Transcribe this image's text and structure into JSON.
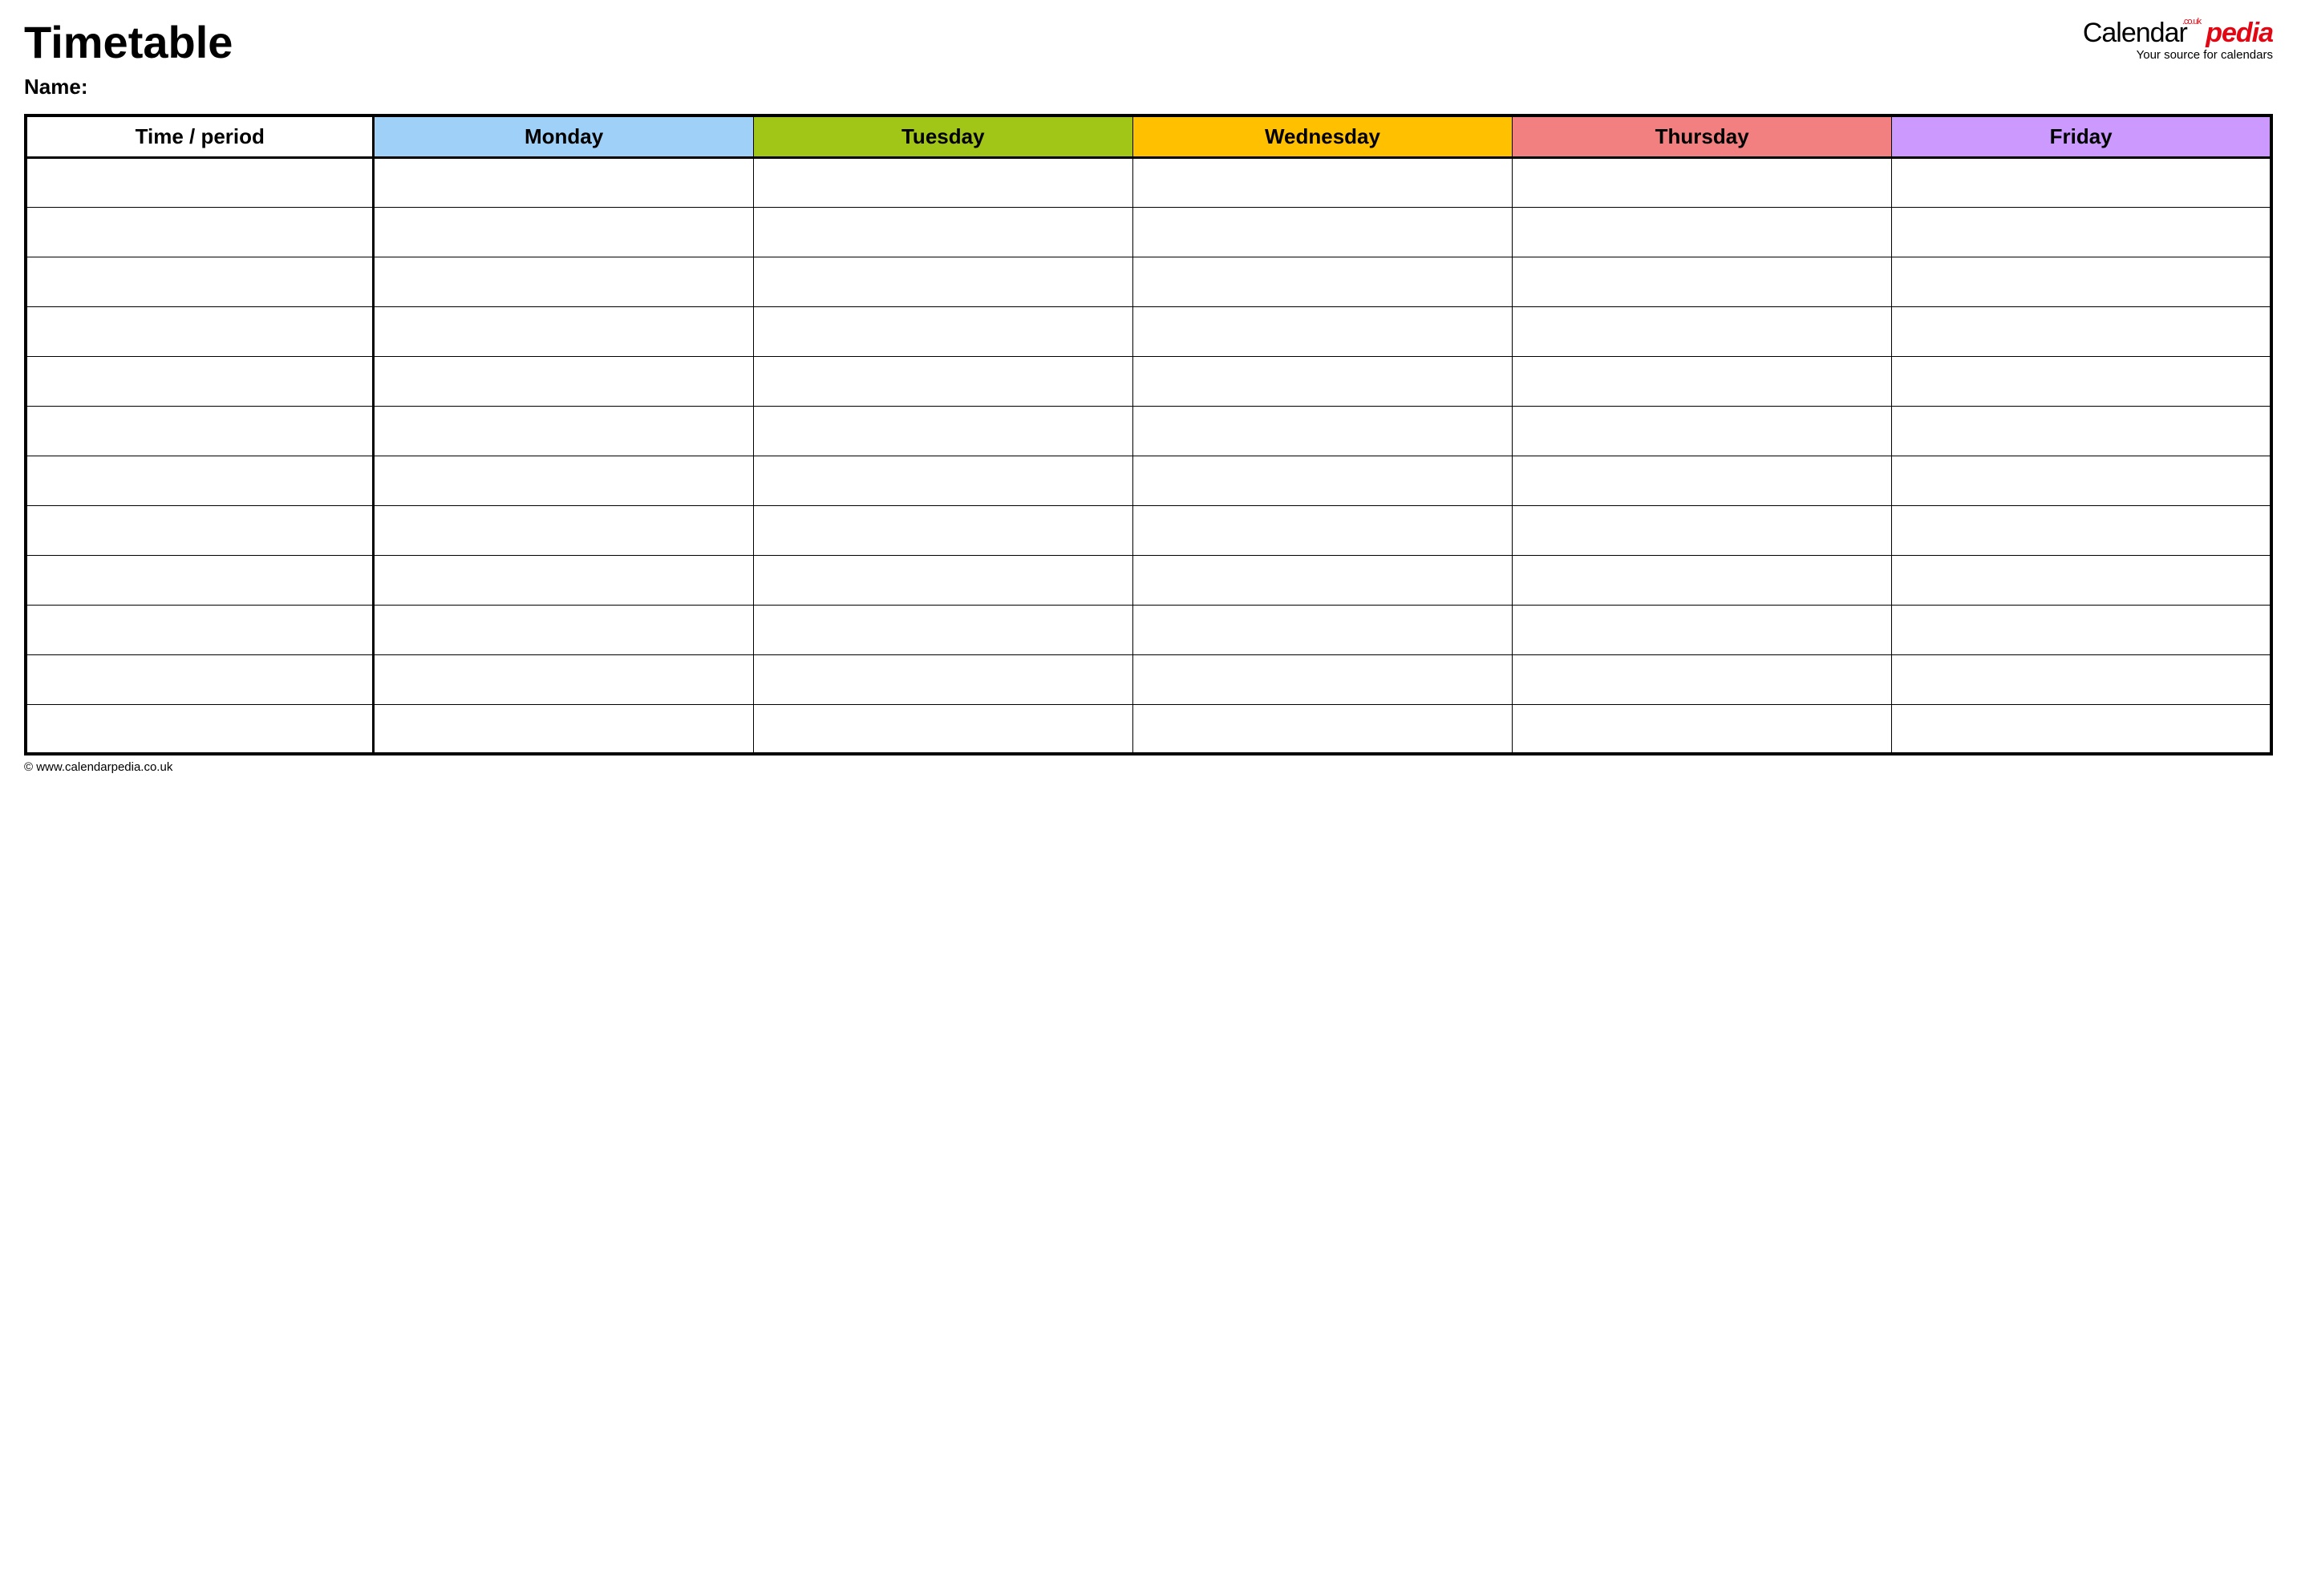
{
  "title": "Timetable",
  "name_label": "Name:",
  "logo": {
    "part1": "Calendar",
    "part2": "pedia",
    "couk": ".co.uk",
    "tagline": "Your source for calendars"
  },
  "columns": [
    {
      "label": "Time / period",
      "bg": "#ffffff"
    },
    {
      "label": "Monday",
      "bg": "#9fd1f8"
    },
    {
      "label": "Tuesday",
      "bg": "#a2c617"
    },
    {
      "label": "Wednesday",
      "bg": "#ffc000"
    },
    {
      "label": "Thursday",
      "bg": "#f28080"
    },
    {
      "label": "Friday",
      "bg": "#cc99ff"
    }
  ],
  "row_count": 12,
  "col_period_width_pct": 15.5,
  "footer": "© www.calendarpedia.co.uk",
  "table_border_color": "#000000",
  "background_color": "#ffffff"
}
